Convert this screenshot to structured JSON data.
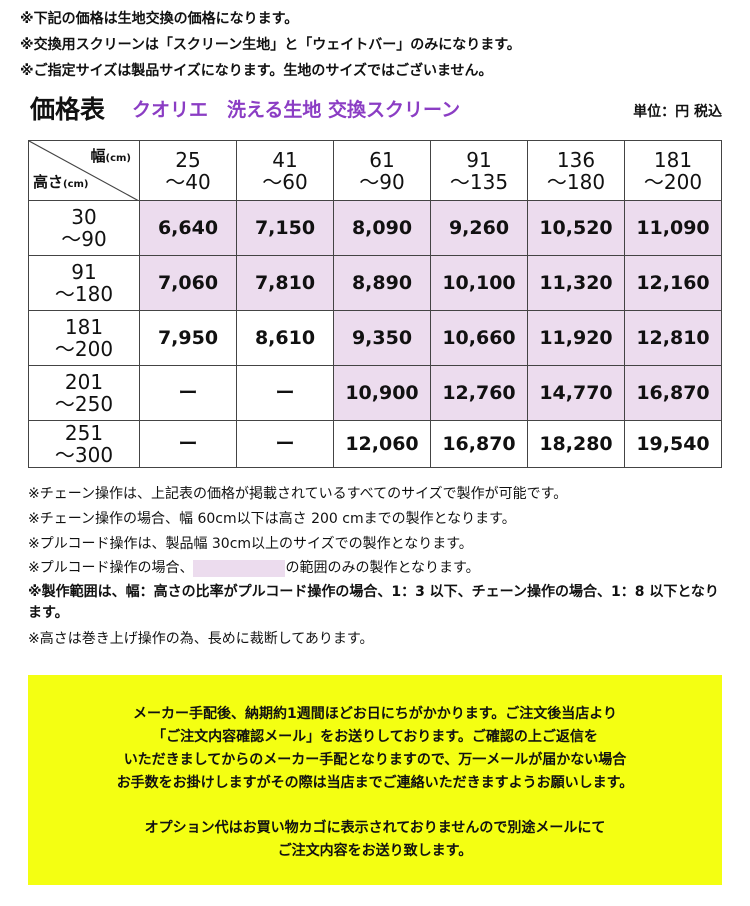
{
  "header": {
    "notes": [
      "※下記の価格は生地交換の価格になります。",
      "※交換用スクリーンは「スクリーン生地」と「ウェイトバー」のみになります。",
      "※ご指定サイズは製品サイズになります。生地のサイズではございません。"
    ],
    "title": "価格表",
    "subtitle": "クオリエ　洗える生地 交換スクリーン",
    "unit": "単位：円 税込"
  },
  "table": {
    "corner": {
      "width_label": "幅",
      "width_unit": "(cm)",
      "height_label": "高さ",
      "height_unit": "(cm)"
    },
    "columns": [
      [
        "25",
        "～40"
      ],
      [
        "41",
        "～60"
      ],
      [
        "61",
        "～90"
      ],
      [
        "91",
        "～135"
      ],
      [
        "136",
        "～180"
      ],
      [
        "181",
        "～200"
      ]
    ],
    "rows": [
      {
        "label": [
          "30",
          "～90"
        ],
        "cells": [
          "6,640",
          "7,150",
          "8,090",
          "9,260",
          "10,520",
          "11,090"
        ],
        "highlight": [
          true,
          true,
          true,
          true,
          true,
          true
        ]
      },
      {
        "label": [
          "91",
          "～180"
        ],
        "cells": [
          "7,060",
          "7,810",
          "8,890",
          "10,100",
          "11,320",
          "12,160"
        ],
        "highlight": [
          true,
          true,
          true,
          true,
          true,
          true
        ]
      },
      {
        "label": [
          "181",
          "～200"
        ],
        "cells": [
          "7,950",
          "8,610",
          "9,350",
          "10,660",
          "11,920",
          "12,810"
        ],
        "highlight": [
          false,
          false,
          true,
          true,
          true,
          true
        ]
      },
      {
        "label": [
          "201",
          "～250"
        ],
        "cells": [
          "ー",
          "ー",
          "10,900",
          "12,760",
          "14,770",
          "16,870"
        ],
        "highlight": [
          false,
          false,
          true,
          true,
          true,
          true
        ]
      },
      {
        "label": [
          "251",
          "～300"
        ],
        "cells": [
          "ー",
          "ー",
          "12,060",
          "16,870",
          "18,280",
          "19,540"
        ],
        "highlight": [
          false,
          false,
          false,
          false,
          false,
          false
        ]
      }
    ]
  },
  "footnotes": {
    "lines": [
      "※チェーン操作は、上記表の価格が掲載されているすべてのサイズで製作が可能です。",
      "※チェーン操作の場合、幅 60cm以下は高さ 200 cmまでの製作となります。",
      "※プルコード操作は、製品幅 30cm以上のサイズでの製作となります。"
    ],
    "swatch_line": [
      "※プルコード操作の場合、",
      "の範囲のみの製作となります。"
    ],
    "bold_line": "※製作範囲は、幅：高さの比率がプルコード操作の場合、1：3 以下、チェーン操作の場合、1：8 以下となります。",
    "last_line": "※高さは巻き上げ操作の為、長めに裁断してあります。"
  },
  "notice": {
    "paragraphs": [
      [
        "メーカー手配後、納期約1週間ほどお日にちがかかります。ご注文後当店より",
        "「ご注文内容確認メール」をお送りしております。ご確認の上ご返信を",
        "いただきましてからのメーカー手配となりますので、万一メールが届かない場合",
        "お手数をお掛けしますがその際は当店までご連絡いただきますようお願いします。"
      ],
      [
        "オプション代はお買い物カゴに表示されておりませんので別途メールにて",
        "ご注文内容をお送り致します。"
      ]
    ]
  }
}
